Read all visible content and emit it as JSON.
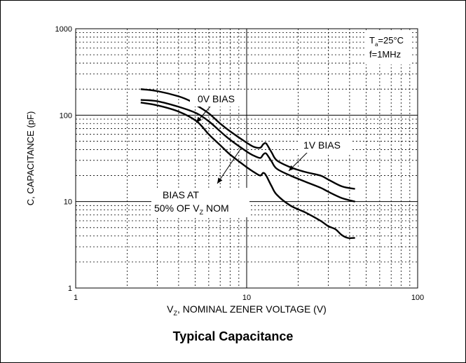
{
  "caption": "Typical Capacitance",
  "chart_data": {
    "type": "line",
    "x_scale": "log",
    "y_scale": "log",
    "xlim": [
      1,
      100
    ],
    "ylim": [
      1,
      1000
    ],
    "xlabel": {
      "main": "V",
      "sub": "Z",
      "rest": ", NOMINAL ZENER VOLTAGE (V)"
    },
    "ylabel": "C, CAPACITANCE (pF)",
    "x_ticks": [
      {
        "value": 1,
        "label": "1"
      },
      {
        "value": 10,
        "label": "10"
      },
      {
        "value": 100,
        "label": "100"
      }
    ],
    "y_ticks": [
      {
        "value": 1,
        "label": "1"
      },
      {
        "value": 10,
        "label": "10"
      },
      {
        "value": 100,
        "label": "100"
      },
      {
        "value": 1000,
        "label": "1000"
      }
    ],
    "grid": true,
    "conditions": {
      "ta": {
        "main": "T",
        "sub": "a",
        "rest": "=25°C"
      },
      "freq": "f=1MHz"
    },
    "series": [
      {
        "name": "0V BIAS",
        "x": [
          2.4,
          3.0,
          4.0,
          4.7,
          5.1,
          6.0,
          7.0,
          8.0,
          10.0,
          11.0,
          12.0,
          12.5,
          13.0,
          14.0,
          15.0,
          18.0,
          22.0,
          27.0,
          30.0,
          36.0,
          43.0
        ],
        "y": [
          200,
          190,
          165,
          145,
          130,
          105,
          80,
          65,
          48,
          43,
          42,
          46,
          47,
          37,
          30,
          25,
          22,
          20,
          18,
          15,
          14
        ]
      },
      {
        "name": "1V BIAS",
        "x": [
          2.4,
          3.0,
          4.0,
          5.1,
          6.0,
          7.0,
          8.0,
          10.0,
          11.0,
          12.0,
          12.5,
          13.0,
          14.0,
          15.0,
          18.0,
          22.0,
          27.0,
          30.0,
          36.0,
          43.0
        ],
        "y": [
          150,
          145,
          125,
          105,
          85,
          65,
          52,
          38,
          34,
          32,
          35,
          36,
          29,
          24,
          20,
          17,
          14.5,
          13,
          11,
          10
        ]
      },
      {
        "name": "BIAS AT 50% OF VZ NOM",
        "x": [
          2.4,
          3.0,
          4.0,
          5.1,
          6.0,
          7.0,
          8.0,
          10.0,
          11.0,
          12.0,
          12.5,
          13.0,
          14.0,
          15.0,
          18.0,
          22.0,
          27.0,
          30.0,
          33.0,
          36.0,
          39.0,
          43.0
        ],
        "y": [
          140,
          130,
          110,
          85,
          60,
          45,
          35,
          25,
          22,
          20,
          21.5,
          20,
          15,
          12,
          9,
          7.5,
          6,
          5.2,
          4.8,
          4.1,
          3.8,
          3.8
        ]
      }
    ],
    "annotations": [
      {
        "id": "label-0v",
        "text": "0V BIAS"
      },
      {
        "id": "label-1v",
        "text": "1V BIAS"
      },
      {
        "id": "label-50a",
        "text": "BIAS AT"
      },
      {
        "id": "label-50b",
        "main": "50% OF V",
        "sub": "Z",
        "rest": " NOM"
      }
    ]
  }
}
